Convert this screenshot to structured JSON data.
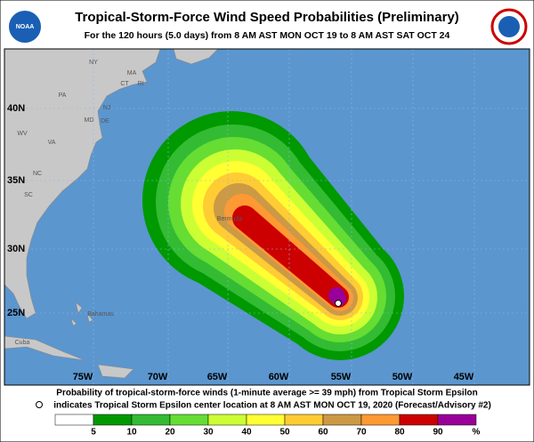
{
  "header": {
    "title": "Tropical-Storm-Force Wind Speed Probabilities (Preliminary)",
    "subtitle": "For the 120 hours (5.0 days) from 8 AM AST MON OCT 19 to 8 AM AST SAT OCT 24",
    "logo_left": "NOAA"
  },
  "map": {
    "latitudes": [
      "40N",
      "35N",
      "30N",
      "25N"
    ],
    "longitudes": [
      "75W",
      "70W",
      "65W",
      "60W",
      "55W",
      "50W",
      "45W"
    ],
    "places": [
      "NY",
      "MA",
      "CT",
      "RI",
      "PA",
      "NJ",
      "MD",
      "DE",
      "WV",
      "VA",
      "NC",
      "SC",
      "Bermuda",
      "Bahamas",
      "Cuba"
    ]
  },
  "footer": {
    "line1": "Probability of tropical-storm-force winds (1-minute average >= 39 mph) from Tropical Storm Epsilon",
    "line2": "indicates Tropical Storm Epsilon center location at 8 AM AST MON OCT 19, 2020 (Forecast/Advisory #2)"
  },
  "legend": {
    "colors": [
      "#ffffff",
      "#009900",
      "#33bb33",
      "#66dd33",
      "#ccff33",
      "#ffff33",
      "#ffcc33",
      "#cc9944",
      "#ff9933",
      "#cc0000",
      "#990099"
    ],
    "labels": [
      "5",
      "10",
      "20",
      "30",
      "40",
      "50",
      "60",
      "70",
      "80",
      "90"
    ],
    "unit": "%"
  }
}
